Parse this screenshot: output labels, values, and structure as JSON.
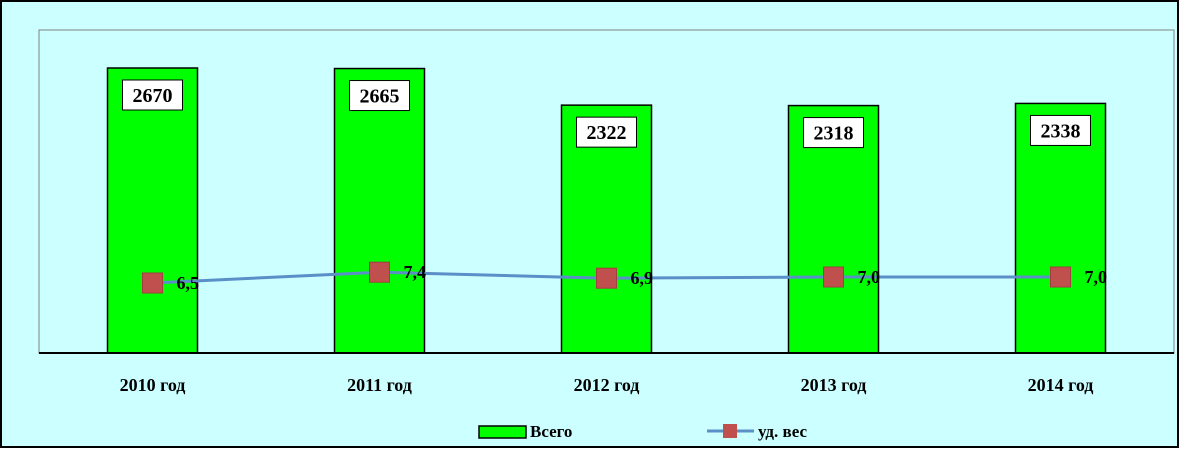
{
  "chart_data": {
    "type": "bar",
    "categories": [
      "2010 год",
      "2011 год",
      "2012 год",
      "2013 год",
      "2014 год"
    ],
    "series": [
      {
        "name": "Всего",
        "type": "bar",
        "values": [
          2670,
          2665,
          2322,
          2318,
          2338
        ],
        "labels": [
          "2670",
          "2665",
          "2322",
          "2318",
          "2338"
        ]
      },
      {
        "name": "уд. вес",
        "type": "line",
        "values": [
          6.5,
          7.4,
          6.9,
          7.0,
          7.0
        ],
        "labels": [
          "6,5",
          "7,4",
          "6,9",
          "7,0",
          "7,0"
        ]
      }
    ],
    "legend_position": "bottom",
    "grid": false,
    "colors": {
      "bar_fill": "#00ff00",
      "line": "#5b8fc8",
      "marker": "#c0504d",
      "plot_background": "#ccffff",
      "frame_background": "#ccffff"
    }
  }
}
